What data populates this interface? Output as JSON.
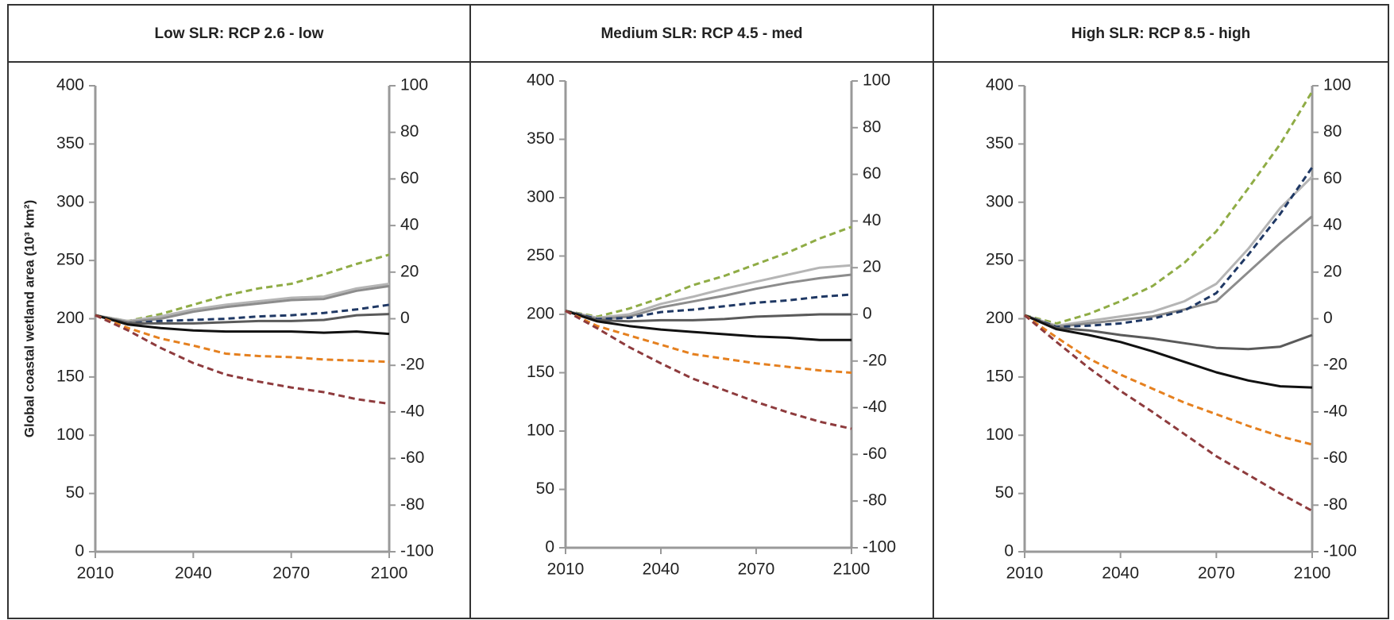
{
  "chart_data": [
    {
      "type": "line",
      "title": "Low SLR: RCP 2.6 - low",
      "ylabel": "Global coastal wetland area (10³ km²)",
      "x": [
        2010,
        2020,
        2030,
        2040,
        2050,
        2060,
        2070,
        2080,
        2090,
        2100
      ],
      "xlim": [
        2010,
        2100
      ],
      "xticks": [
        2010,
        2040,
        2070,
        2100
      ],
      "ylim": [
        0,
        400
      ],
      "yticks": [
        0,
        50,
        100,
        150,
        200,
        250,
        300,
        350,
        400
      ],
      "y2lim": [
        -100,
        100
      ],
      "y2ticks": [
        -100,
        -80,
        -60,
        -40,
        -20,
        0,
        20,
        40,
        60,
        80,
        100
      ],
      "series": [
        {
          "color": "#8fac45",
          "style": "dashed",
          "values": [
            203,
            198,
            204,
            212,
            220,
            226,
            230,
            238,
            247,
            255
          ]
        },
        {
          "color": "#b5b5b5",
          "style": "solid",
          "values": [
            203,
            198,
            202,
            208,
            212,
            215,
            218,
            219,
            226,
            230
          ]
        },
        {
          "color": "#8c8c8c",
          "style": "solid",
          "values": [
            203,
            197,
            200,
            206,
            210,
            213,
            216,
            217,
            224,
            228
          ]
        },
        {
          "color": "#1f3864",
          "style": "dashed",
          "values": [
            203,
            196,
            198,
            199,
            200,
            202,
            203,
            205,
            208,
            212
          ]
        },
        {
          "color": "#5a5a5a",
          "style": "solid",
          "values": [
            203,
            196,
            196,
            196,
            197,
            198,
            198,
            199,
            203,
            204
          ]
        },
        {
          "color": "#111111",
          "style": "solid",
          "values": [
            203,
            195,
            192,
            190,
            189,
            189,
            189,
            188,
            189,
            187
          ]
        },
        {
          "color": "#e5801f",
          "style": "dashed",
          "values": [
            203,
            192,
            183,
            177,
            170,
            168,
            167,
            165,
            164,
            163
          ]
        },
        {
          "color": "#8e3b3d",
          "style": "dashed",
          "values": [
            203,
            190,
            175,
            162,
            152,
            146,
            141,
            137,
            131,
            127
          ]
        }
      ]
    },
    {
      "type": "line",
      "title": "Medium SLR: RCP 4.5 - med",
      "x": [
        2010,
        2020,
        2030,
        2040,
        2050,
        2060,
        2070,
        2080,
        2090,
        2100
      ],
      "xlim": [
        2010,
        2100
      ],
      "xticks": [
        2010,
        2040,
        2070,
        2100
      ],
      "ylim": [
        0,
        400
      ],
      "yticks": [
        0,
        50,
        100,
        150,
        200,
        250,
        300,
        350,
        400
      ],
      "y2lim": [
        -100,
        100
      ],
      "y2ticks": [
        -100,
        -80,
        -60,
        -40,
        -20,
        0,
        20,
        40,
        60,
        80,
        100
      ],
      "series": [
        {
          "color": "#8fac45",
          "style": "dashed",
          "values": [
            203,
            198,
            205,
            214,
            225,
            233,
            243,
            253,
            265,
            275
          ]
        },
        {
          "color": "#b5b5b5",
          "style": "solid",
          "values": [
            203,
            197,
            200,
            209,
            215,
            222,
            228,
            234,
            240,
            242
          ]
        },
        {
          "color": "#8c8c8c",
          "style": "solid",
          "values": [
            203,
            196,
            198,
            206,
            211,
            216,
            222,
            227,
            231,
            234
          ]
        },
        {
          "color": "#1f3864",
          "style": "dashed",
          "values": [
            203,
            196,
            197,
            202,
            204,
            207,
            210,
            212,
            215,
            217
          ]
        },
        {
          "color": "#5a5a5a",
          "style": "solid",
          "values": [
            203,
            195,
            194,
            195,
            195,
            196,
            198,
            199,
            200,
            200
          ]
        },
        {
          "color": "#111111",
          "style": "solid",
          "values": [
            203,
            194,
            190,
            187,
            185,
            183,
            181,
            180,
            178,
            178
          ]
        },
        {
          "color": "#e5801f",
          "style": "dashed",
          "values": [
            203,
            190,
            182,
            174,
            166,
            162,
            158,
            155,
            152,
            150
          ]
        },
        {
          "color": "#8e3b3d",
          "style": "dashed",
          "values": [
            203,
            188,
            172,
            158,
            145,
            135,
            125,
            116,
            108,
            102
          ]
        }
      ]
    },
    {
      "type": "line",
      "title": "High SLR: RCP 8.5 - high",
      "x": [
        2010,
        2020,
        2030,
        2040,
        2050,
        2060,
        2070,
        2080,
        2090,
        2100
      ],
      "xlim": [
        2010,
        2100
      ],
      "xticks": [
        2010,
        2040,
        2070,
        2100
      ],
      "ylim": [
        0,
        400
      ],
      "yticks": [
        0,
        50,
        100,
        150,
        200,
        250,
        300,
        350,
        400
      ],
      "y2lim": [
        -100,
        100
      ],
      "y2ticks": [
        -100,
        -80,
        -60,
        -40,
        -20,
        0,
        20,
        40,
        60,
        80,
        100
      ],
      "series": [
        {
          "color": "#8fac45",
          "style": "dashed",
          "values": [
            203,
            196,
            204,
            215,
            228,
            248,
            275,
            312,
            350,
            395
          ]
        },
        {
          "color": "#b5b5b5",
          "style": "solid",
          "values": [
            203,
            194,
            198,
            202,
            206,
            215,
            230,
            260,
            295,
            322
          ]
        },
        {
          "color": "#8c8c8c",
          "style": "solid",
          "values": [
            203,
            193,
            196,
            199,
            202,
            208,
            215,
            240,
            265,
            288
          ]
        },
        {
          "color": "#1f3864",
          "style": "dashed",
          "values": [
            203,
            193,
            194,
            196,
            200,
            207,
            222,
            255,
            290,
            330
          ]
        },
        {
          "color": "#5a5a5a",
          "style": "solid",
          "values": [
            203,
            192,
            190,
            186,
            183,
            179,
            175,
            174,
            176,
            186
          ]
        },
        {
          "color": "#111111",
          "style": "solid",
          "values": [
            203,
            191,
            186,
            180,
            172,
            163,
            154,
            147,
            142,
            141
          ]
        },
        {
          "color": "#e5801f",
          "style": "dashed",
          "values": [
            203,
            184,
            166,
            152,
            140,
            128,
            118,
            108,
            99,
            92
          ]
        },
        {
          "color": "#8e3b3d",
          "style": "dashed",
          "values": [
            203,
            180,
            158,
            138,
            120,
            101,
            82,
            66,
            50,
            35
          ]
        }
      ]
    }
  ]
}
